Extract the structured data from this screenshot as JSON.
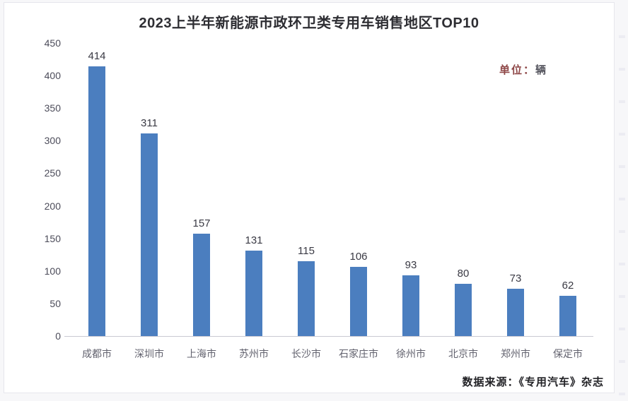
{
  "page": {
    "background": "#f7f7f9",
    "card_background": "#ffffff"
  },
  "chart_data": {
    "type": "bar",
    "title": "2023上半年新能源市政环卫类专用车销售地区TOP10",
    "unit_prefix": "单位：",
    "unit_value": "辆",
    "categories": [
      "成都市",
      "深圳市",
      "上海市",
      "苏州市",
      "长沙市",
      "石家庄市",
      "徐州市",
      "北京市",
      "郑州市",
      "保定市"
    ],
    "values": [
      414,
      311,
      157,
      131,
      115,
      106,
      93,
      80,
      73,
      62
    ],
    "y_ticks": [
      0,
      50,
      100,
      150,
      200,
      250,
      300,
      350,
      400,
      450
    ],
    "ylim": [
      0,
      450
    ],
    "bar_color": "#4b7ebf",
    "value_label_color": "#3a3a44",
    "tick_label_color": "#4c4c5a",
    "category_label_color": "#62626e",
    "unit_prefix_color": "#8e4747",
    "grid": false,
    "legend": "none",
    "source": "数据来源：《专用汽车》杂志"
  }
}
